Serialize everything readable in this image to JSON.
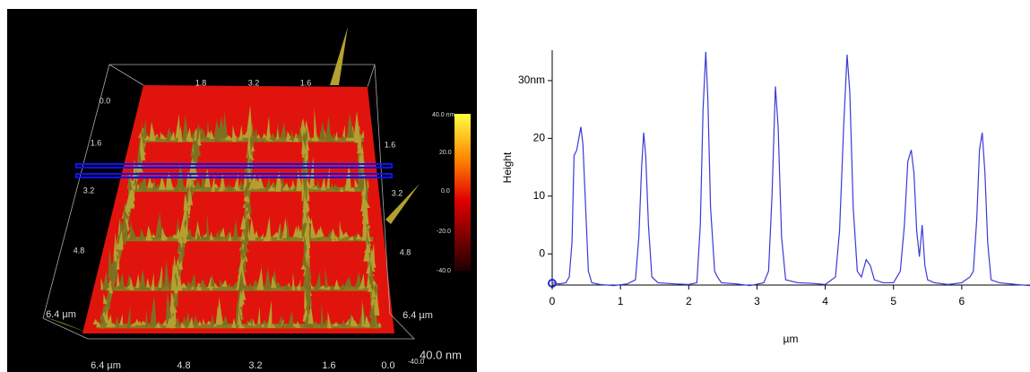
{
  "surface_view": {
    "left_axis_labels": [
      "0.0",
      "1.6",
      "3.2",
      "4.8",
      "6.4 µm"
    ],
    "bottom_axis_labels": [
      "6.4 µm",
      "4.8",
      "3.2",
      "1.6",
      "0.0"
    ],
    "right_axis_labels": [
      "1.6",
      "3.2",
      "4.8",
      "6.4 µm"
    ],
    "top_axis_labels": [
      "1.8",
      "3.2",
      "1.6"
    ],
    "colorbar_labels": [
      "40.0 nm",
      "20.0",
      "0.0",
      "-20.0",
      "-40.0"
    ],
    "z_axis_labels": [
      "-40.0",
      "40.0 nm"
    ]
  },
  "chart_data": {
    "type": "line",
    "x_label": "µm",
    "y_label": "Height",
    "color": "#3a3ad8",
    "x": [
      0,
      0.1,
      0.2,
      0.25,
      0.29,
      0.32,
      0.36,
      0.39,
      0.42,
      0.45,
      0.49,
      0.53,
      0.58,
      0.7,
      0.9,
      1.1,
      1.22,
      1.27,
      1.31,
      1.34,
      1.37,
      1.41,
      1.46,
      1.55,
      1.8,
      2.0,
      2.12,
      2.17,
      2.21,
      2.25,
      2.28,
      2.32,
      2.38,
      2.42,
      2.48,
      2.7,
      2.9,
      3.1,
      3.17,
      3.22,
      3.27,
      3.31,
      3.36,
      3.42,
      3.6,
      3.8,
      4.0,
      4.15,
      4.21,
      4.27,
      4.32,
      4.36,
      4.41,
      4.47,
      4.53,
      4.6,
      4.66,
      4.72,
      4.85,
      5.0,
      5.1,
      5.16,
      5.21,
      5.26,
      5.3,
      5.34,
      5.38,
      5.42,
      5.46,
      5.5,
      5.6,
      5.8,
      6.0,
      6.12,
      6.17,
      6.22,
      6.26,
      6.3,
      6.34,
      6.38,
      6.43,
      6.55,
      6.8,
      7.0
    ],
    "values": [
      -5,
      -5.2,
      -5,
      -4,
      2,
      17,
      18,
      20,
      22,
      19,
      8,
      -3,
      -5,
      -5.3,
      -5.5,
      -5.2,
      -4.5,
      3,
      15,
      21,
      17,
      5,
      -4,
      -5,
      -5.2,
      -5.3,
      -5,
      5,
      25,
      35,
      27,
      8,
      -3,
      -4,
      -5,
      -5.2,
      -5.5,
      -5,
      -3,
      10,
      29,
      22,
      3,
      -4.5,
      -5,
      -5.1,
      -5.3,
      -4,
      4,
      22,
      34.5,
      28,
      8,
      -3,
      -4,
      -1,
      -2,
      -4.5,
      -5,
      -5,
      -3,
      5,
      16,
      18,
      14,
      4,
      -0.5,
      5,
      -2,
      -4.5,
      -5,
      -5.3,
      -5,
      -4,
      -3,
      6,
      18,
      21,
      14,
      2,
      -4.5,
      -5,
      -5.3,
      -5.5
    ],
    "xlim": [
      0,
      7
    ],
    "ylim": [
      -5.4,
      35.5
    ],
    "xticks": [
      0,
      1,
      2,
      3,
      4,
      5,
      6
    ],
    "yticks": [
      0,
      10,
      20,
      {
        "value": 30,
        "label": "30nm"
      }
    ]
  }
}
